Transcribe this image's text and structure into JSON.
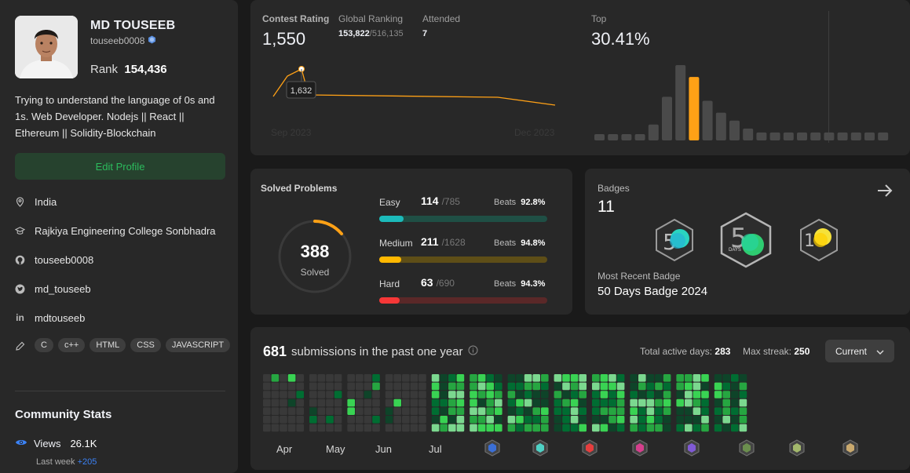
{
  "profile": {
    "name": "MD TOUSEEB",
    "handle": "touseeb0008",
    "rank_label": "Rank",
    "rank_value": "154,436",
    "bio": "Trying to understand the language of 0s and 1s. Web Developer. Nodejs || React || Ethereum || Solidity-Blockchain",
    "edit_label": "Edit Profile",
    "location": "India",
    "school": "Rajkiya Engineering College Sonbhadra",
    "github": "touseeb0008",
    "twitter": "md_touseeb",
    "linkedin": "mdtouseeb",
    "skills": [
      "C",
      "c++",
      "HTML",
      "CSS",
      "JAVASCRIPT"
    ]
  },
  "community": {
    "title": "Community Stats",
    "views_label": "Views",
    "views_value": "26.1K",
    "last_week_label": "Last week",
    "last_week_value": "+205"
  },
  "contest": {
    "rating_label": "Contest Rating",
    "rating_value": "1,550",
    "global_label": "Global Ranking",
    "global_rank": "153,822",
    "global_total": "/516,135",
    "attended_label": "Attended",
    "attended_value": "7",
    "top_label": "Top",
    "top_value": "30.41%",
    "tooltip": "1,632",
    "x_start": "Sep 2023",
    "x_end": "Dec 2023",
    "accent": "#ffa116"
  },
  "solved": {
    "title": "Solved Problems",
    "total": "388",
    "total_label": "Solved",
    "beats_label": "Beats",
    "rows": [
      {
        "label": "Easy",
        "count": "114",
        "total": "/785",
        "beats": "92.8%",
        "fraction": 0.145,
        "color": "#1cbaba",
        "track": "#1f4f45"
      },
      {
        "label": "Medium",
        "count": "211",
        "total": "/1628",
        "beats": "94.8%",
        "fraction": 0.13,
        "color": "#ffb800",
        "track": "#5e4e17"
      },
      {
        "label": "Hard",
        "count": "63",
        "total": "/690",
        "beats": "94.3%",
        "fraction": 0.091,
        "color": "#f63737",
        "track": "#5a2828"
      }
    ]
  },
  "badges": {
    "title": "Badges",
    "count": "11",
    "recent_label": "Most Recent Badge",
    "recent_name": "50 Days Badge 2024",
    "days_text": "DAYS"
  },
  "submissions": {
    "count": "681",
    "text": "submissions in the past one year",
    "active_label": "Total active days:",
    "active_value": "283",
    "streak_label": "Max streak:",
    "streak_value": "250",
    "dropdown": "Current",
    "months": [
      "Apr",
      "May",
      "Jun",
      "Jul"
    ]
  },
  "chart_data": {
    "type": "bar",
    "title": "Top",
    "values": [
      1,
      1,
      1,
      1,
      4,
      11,
      19,
      16,
      10,
      7,
      5,
      3,
      2,
      2,
      2,
      2,
      2,
      2,
      2,
      2,
      2,
      2
    ],
    "highlight_index": 7
  }
}
